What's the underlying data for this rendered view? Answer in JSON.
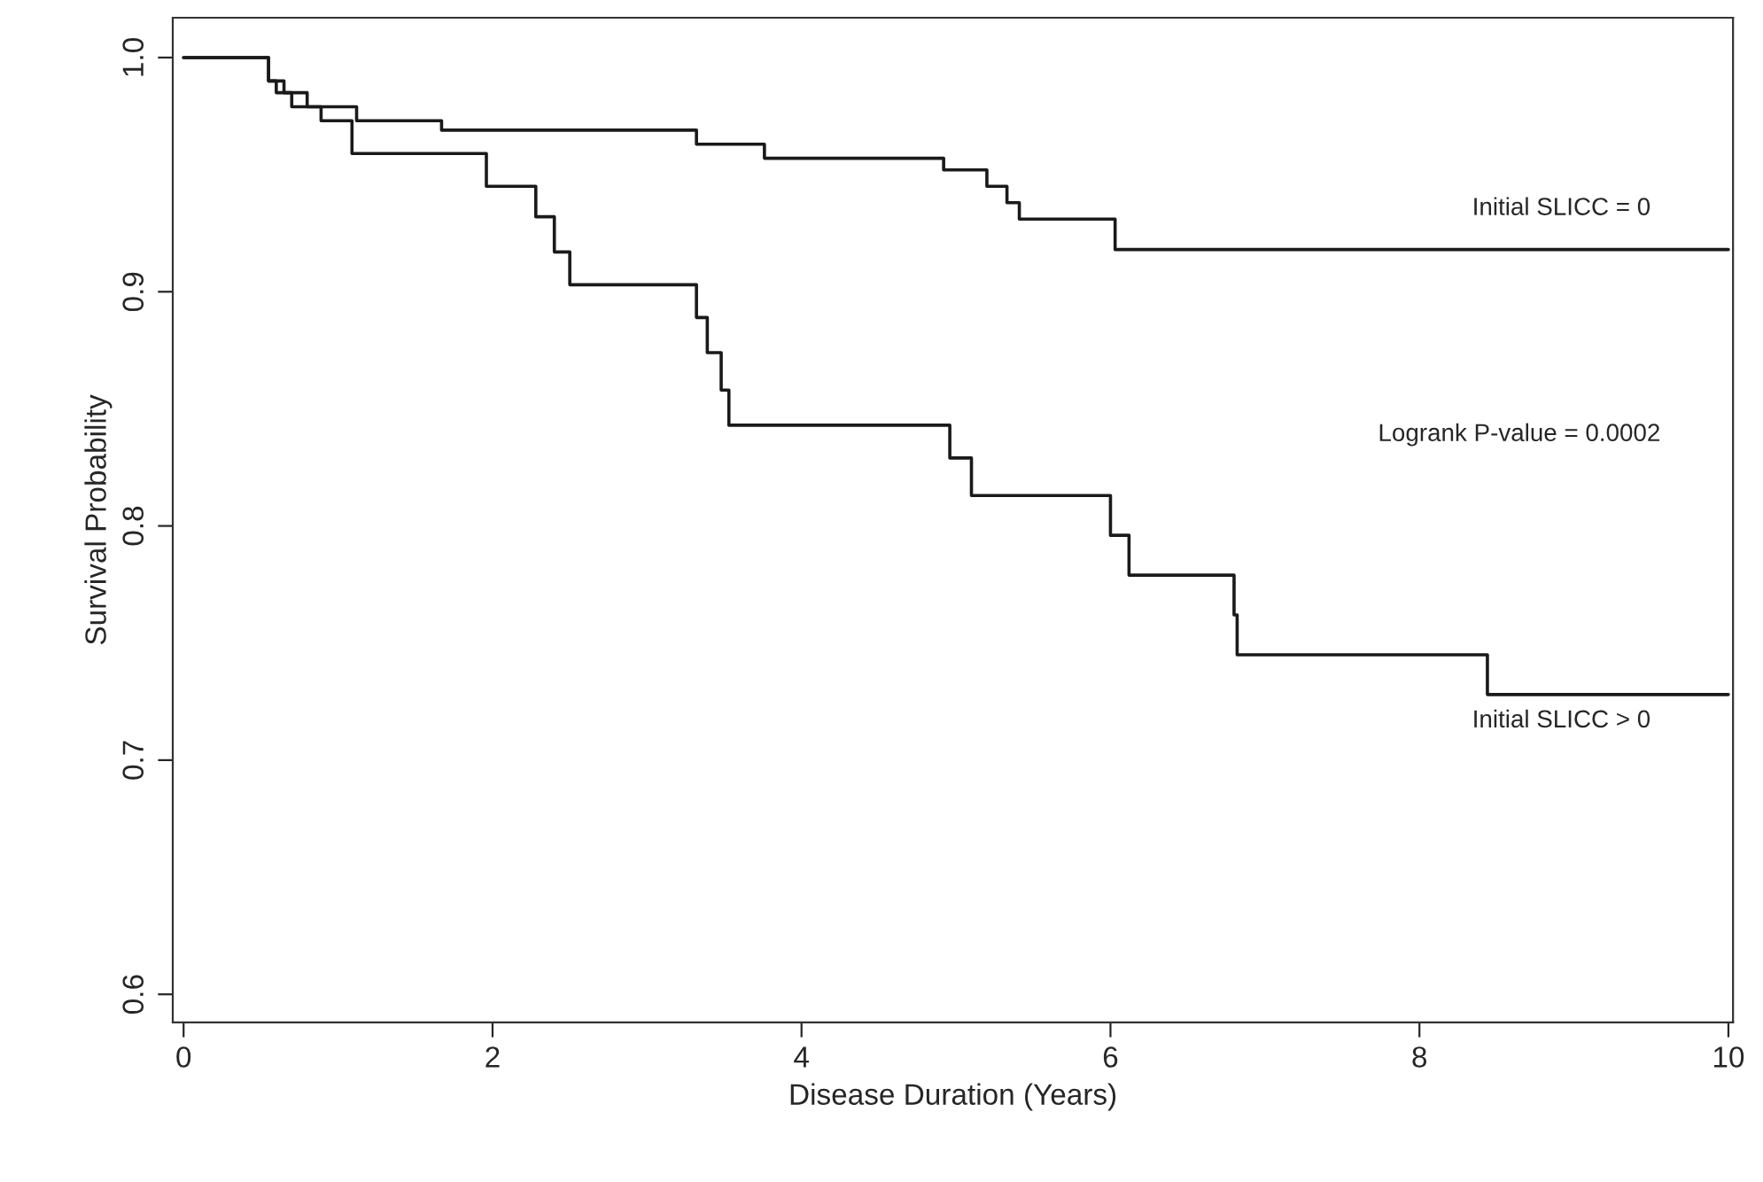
{
  "chart_data": {
    "type": "step",
    "xlabel": "Disease Duration (Years)",
    "ylabel": "Survival Probability",
    "xlim": [
      -0.07,
      10.03
    ],
    "ylim": [
      0.588,
      1.017
    ],
    "xticks": [
      0,
      2,
      4,
      6,
      8,
      10
    ],
    "yticks": [
      0.6,
      0.7,
      0.8,
      0.9,
      {
        "value": 1.0,
        "label": "1.0"
      }
    ],
    "grid": false,
    "legend": false,
    "series": [
      {
        "color": "#1a1a1a",
        "x": [
          0,
          0.55,
          0.6,
          0.7,
          1.12,
          1.67,
          3.32,
          3.76,
          4.92,
          5.2,
          5.33,
          5.41,
          6.03,
          10
        ],
        "values": [
          1.0,
          0.99,
          0.985,
          0.979,
          0.973,
          0.969,
          0.963,
          0.957,
          0.952,
          0.945,
          0.938,
          0.931,
          0.918,
          0.918
        ]
      },
      {
        "color": "#1a1a1a",
        "x": [
          0,
          0.55,
          0.65,
          0.8,
          0.89,
          1.09,
          1.96,
          2.28,
          2.4,
          2.5,
          3.32,
          3.39,
          3.48,
          3.53,
          4.96,
          5.1,
          6.0,
          6.12,
          6.8,
          6.82,
          8.44,
          10
        ],
        "values": [
          1.0,
          0.99,
          0.985,
          0.979,
          0.973,
          0.959,
          0.945,
          0.932,
          0.917,
          0.903,
          0.889,
          0.874,
          0.858,
          0.843,
          0.829,
          0.813,
          0.796,
          0.779,
          0.762,
          0.745,
          0.728,
          0.728
        ]
      }
    ],
    "annotations": [
      "Initial SLICC = 0",
      "Logrank P-value = 0.0002",
      "Initial SLICC > 0"
    ]
  }
}
